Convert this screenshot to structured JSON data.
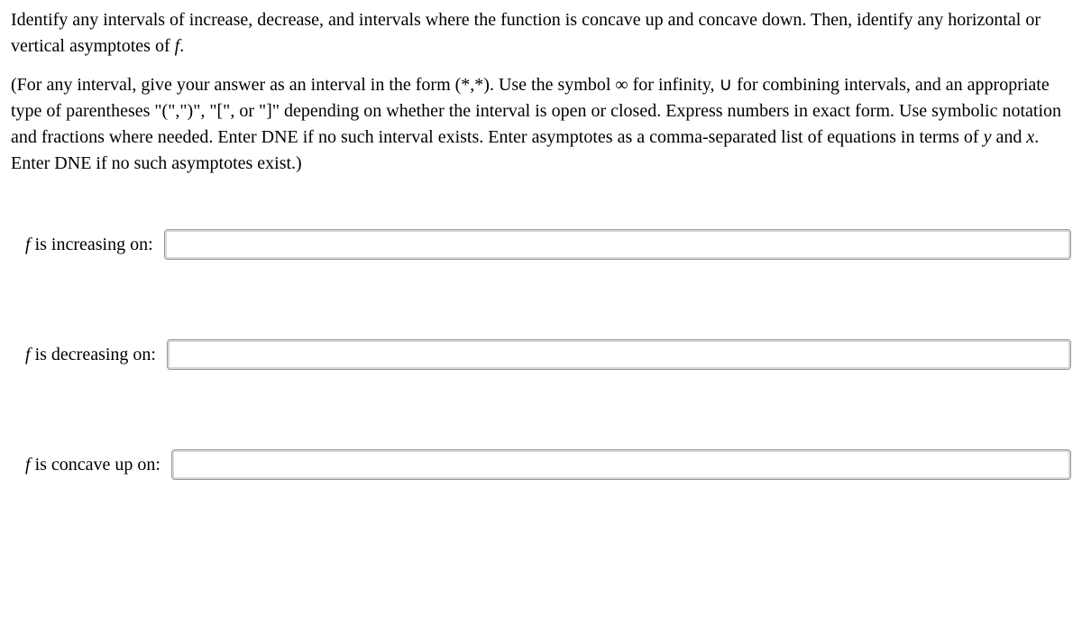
{
  "instructions": {
    "p1_a": "Identify any intervals of increase, decrease, and intervals where the function is concave up and concave down. Then, identify any horizontal or vertical asymptotes of ",
    "p1_f": "f",
    "p1_b": ".",
    "p2_a": "(For any interval, give your answer as an interval in the form (*,*). Use the symbol ∞ for infinity, ∪ for combining intervals, and an appropriate type of parentheses \"(\",\")\", \"[\", or \"]\" depending on whether the interval is open or closed. Express numbers in exact form. Use symbolic notation and fractions where needed. Enter DNE if no such interval exists. Enter asymptotes as a comma-separated list of equations in terms of ",
    "p2_y": "y",
    "p2_mid": " and ",
    "p2_x": "x",
    "p2_b": ". Enter DNE if no such asymptotes exist.)"
  },
  "rows": {
    "increasing": {
      "f": "f",
      "rest": " is increasing on:"
    },
    "decreasing": {
      "f": "f",
      "rest": " is decreasing on:"
    },
    "concaveup": {
      "f": "f",
      "rest": " is concave up on:"
    }
  }
}
